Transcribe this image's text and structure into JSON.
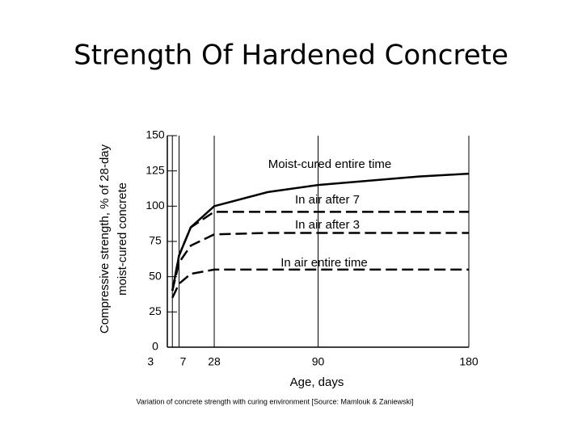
{
  "chart_data": {
    "type": "line",
    "title": "Strength Of Hardened Concrete",
    "x_label": "Age, days",
    "y_label": [
      "Compressive strength, % of 28-day",
      "moist-cured concrete"
    ],
    "caption": "Variation of concrete strength with curing environment [Source: Mamlouk & Zaniewski]",
    "xlim": [
      0,
      180
    ],
    "xticks": [
      3,
      7,
      28,
      90,
      180
    ],
    "ylim": [
      0,
      150
    ],
    "yticks": [
      0,
      25,
      50,
      75,
      100,
      125,
      150
    ],
    "grid": "x",
    "series": [
      {
        "name": "Moist-cured entire time",
        "color": "#000000",
        "dash": "solid",
        "x": [
          3,
          7,
          14,
          28,
          60,
          90,
          120,
          150,
          180
        ],
        "values": [
          40,
          65,
          85,
          100,
          110,
          115,
          118,
          121,
          123
        ]
      },
      {
        "name": "In air after 7",
        "color": "#000000",
        "dash": "dashed",
        "x": [
          3,
          7,
          14,
          28,
          60,
          90,
          120,
          150,
          180
        ],
        "values": [
          40,
          65,
          85,
          96,
          96,
          96,
          96,
          96,
          96
        ]
      },
      {
        "name": "In air after 3",
        "color": "#000000",
        "dash": "dashed",
        "x": [
          3,
          7,
          14,
          28,
          60,
          90,
          120,
          150,
          180
        ],
        "values": [
          40,
          60,
          72,
          80,
          81,
          81,
          81,
          81,
          81
        ]
      },
      {
        "name": "In air entire time",
        "color": "#000000",
        "dash": "dashed",
        "x": [
          3,
          7,
          14,
          28,
          60,
          90,
          120,
          150,
          180
        ],
        "values": [
          35,
          45,
          52,
          55,
          55,
          55,
          55,
          55,
          55
        ]
      }
    ]
  }
}
